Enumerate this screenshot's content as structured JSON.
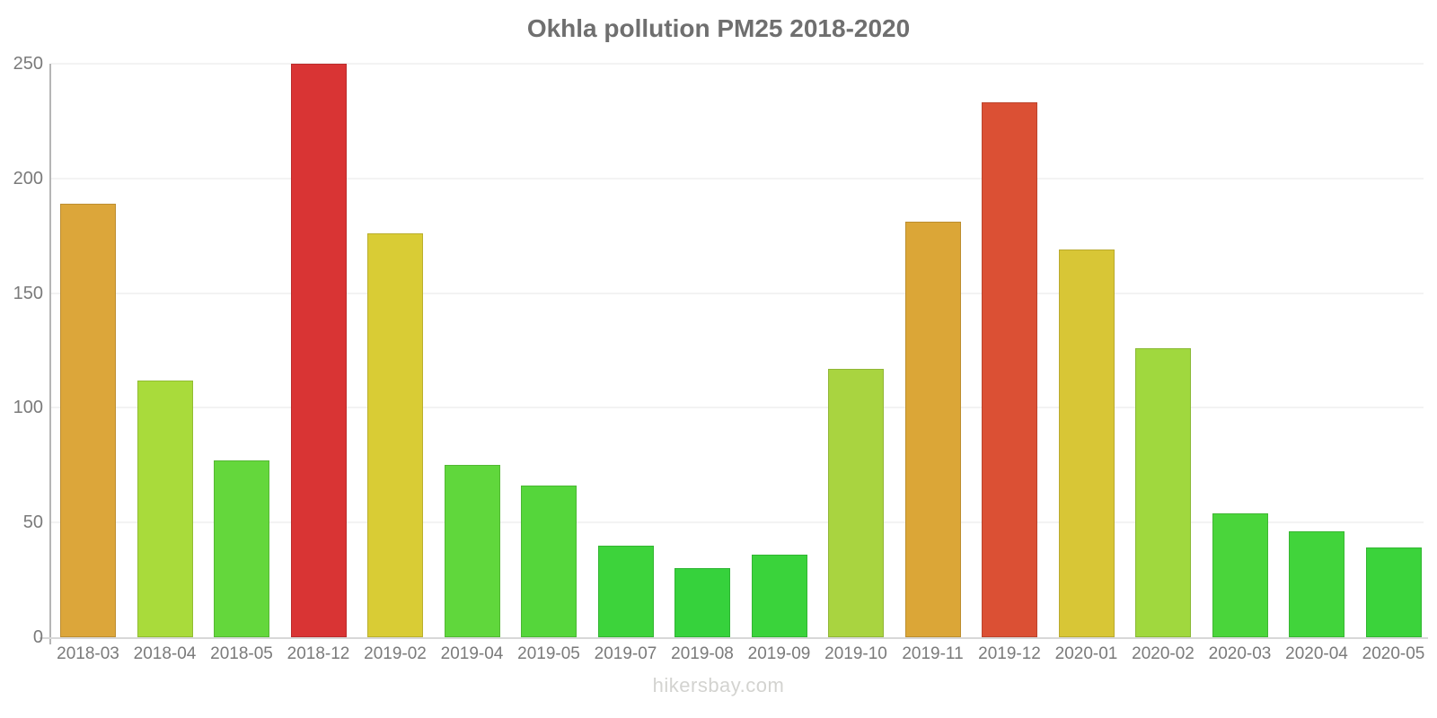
{
  "title": "Okhla pollution PM25 2018-2020",
  "footer": {
    "label": "hikersbay.com"
  },
  "chart_data": {
    "type": "bar",
    "title": "Okhla pollution PM25 2018-2020",
    "categories": [
      "2018-03",
      "2018-04",
      "2018-05",
      "2018-12",
      "2019-02",
      "2019-04",
      "2019-05",
      "2019-07",
      "2019-08",
      "2019-09",
      "2019-10",
      "2019-11",
      "2019-12",
      "2020-01",
      "2020-02",
      "2020-03",
      "2020-04",
      "2020-05"
    ],
    "values": [
      189,
      112,
      77,
      250,
      176,
      75,
      66,
      40,
      30,
      36,
      117,
      181,
      233,
      169,
      126,
      54,
      46,
      39
    ],
    "bar_colors": [
      "#DCA63A",
      "#A9DB3B",
      "#64D73C",
      "#D93434",
      "#D9CC35",
      "#60D73C",
      "#55D63B",
      "#3DD33B",
      "#36D23C",
      "#3AD33B",
      "#A9D440",
      "#DBA637",
      "#DB5034",
      "#D8C636",
      "#A0D83E",
      "#4AD53B",
      "#41D43B",
      "#3BD33B"
    ],
    "xlabel": "",
    "ylabel": "",
    "ylim": [
      0,
      250
    ],
    "yticks": [
      0,
      50,
      100,
      150,
      200,
      250
    ],
    "grid": true,
    "legend": false
  },
  "style": {
    "background": "#ffffff",
    "title_color": "#6f6f6f",
    "axis_label_color": "#7a7a7a",
    "gridline_color": "#f3f3f3",
    "x_axis_color": "#d8d8d8",
    "y_axis_color": "#b5b5b5",
    "footer_color": "#d3d3d0"
  }
}
